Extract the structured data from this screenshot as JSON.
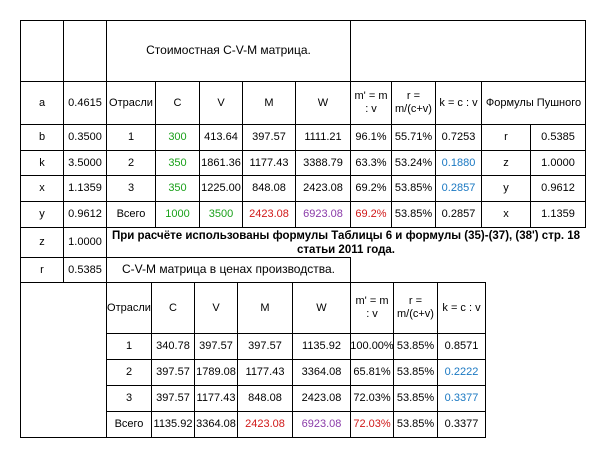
{
  "top": {
    "title": "Стоимостная C-V-M матрица.",
    "headers": [
      "Отрасли",
      "C",
      "V",
      "M",
      "W",
      "m' = m : v",
      "r = m/(c+v)",
      "k = c : v",
      "Формулы Пушного"
    ],
    "rows": [
      [
        "1",
        "300",
        "413.64",
        "397.57",
        "1111.21",
        "96.1%",
        "55.71%",
        "0.7253"
      ],
      [
        "2",
        "350",
        "1861.36",
        "1177.43",
        "3388.79",
        "63.3%",
        "53.24%",
        "0.1880"
      ],
      [
        "3",
        "350",
        "1225.00",
        "848.08",
        "2423.08",
        "69.2%",
        "53.85%",
        "0.2857"
      ],
      [
        "Всего",
        "1000",
        "3500",
        "2423.08",
        "6923.08",
        "69.2%",
        "53.85%",
        "0.2857"
      ]
    ],
    "params_left": [
      [
        "a",
        "0.4615"
      ],
      [
        "b",
        "0.3500"
      ],
      [
        "k",
        "3.5000"
      ],
      [
        "x",
        "1.1359"
      ],
      [
        "y",
        "0.9612"
      ],
      [
        "z",
        "1.0000"
      ],
      [
        "r",
        "0.5385"
      ]
    ],
    "params_right": [
      [
        "r",
        "0.5385"
      ],
      [
        "z",
        "1.0000"
      ],
      [
        "y",
        "0.9612"
      ],
      [
        "x",
        "1.1359"
      ]
    ]
  },
  "note": "При расчёте использованы формулы Таблицы 6 и формулы (35)-(37), (38') стр. 18 статьи 2011 года.",
  "bottom": {
    "title": "C-V-M матрица в ценах производства.",
    "headers": [
      "Отрасли",
      "C",
      "V",
      "M",
      "W",
      "m' = m : v",
      "r = m/(c+v)",
      "k = c : v"
    ],
    "rows": [
      [
        "1",
        "340.78",
        "397.57",
        "397.57",
        "1135.92",
        "100.00%",
        "53.85%",
        "0.8571"
      ],
      [
        "2",
        "397.57",
        "1789.08",
        "1177.43",
        "3364.08",
        "65.81%",
        "53.85%",
        "0.2222"
      ],
      [
        "3",
        "397.57",
        "1177.43",
        "848.08",
        "2423.08",
        "72.03%",
        "53.85%",
        "0.3377"
      ],
      [
        "Всего",
        "1135.92",
        "3364.08",
        "2423.08",
        "6923.08",
        "72.03%",
        "53.85%",
        "0.3377"
      ]
    ]
  },
  "colors": {
    "green": "#1aa01a",
    "red": "#d01818",
    "purple": "#8a3aa8",
    "blue": "#1a78c2"
  }
}
